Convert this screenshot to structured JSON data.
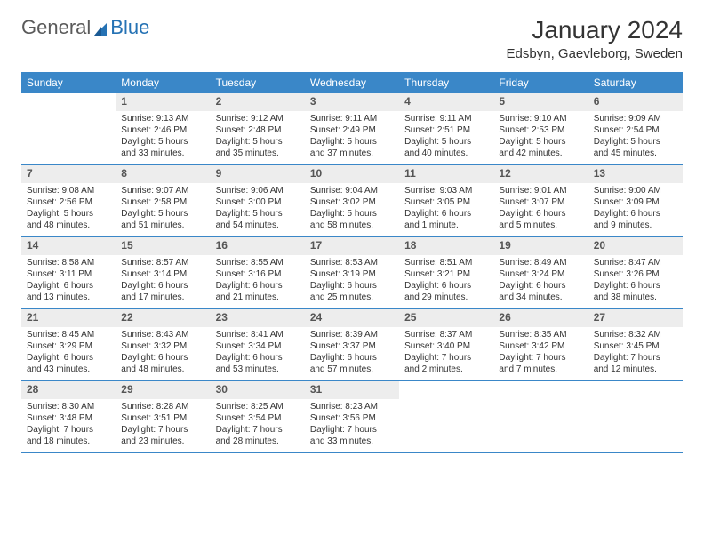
{
  "logo": {
    "text1": "General",
    "text2": "Blue"
  },
  "title": "January 2024",
  "location": "Edsbyn, Gaevleborg, Sweden",
  "colors": {
    "header_bg": "#3a87c8",
    "header_text": "#ffffff",
    "daynum_bg": "#ededed",
    "row_border": "#3a87c8",
    "text": "#333333"
  },
  "daysOfWeek": [
    "Sunday",
    "Monday",
    "Tuesday",
    "Wednesday",
    "Thursday",
    "Friday",
    "Saturday"
  ],
  "weeks": [
    [
      {
        "n": "",
        "sr": "",
        "ss": "",
        "dl": ""
      },
      {
        "n": "1",
        "sr": "Sunrise: 9:13 AM",
        "ss": "Sunset: 2:46 PM",
        "dl": "Daylight: 5 hours and 33 minutes."
      },
      {
        "n": "2",
        "sr": "Sunrise: 9:12 AM",
        "ss": "Sunset: 2:48 PM",
        "dl": "Daylight: 5 hours and 35 minutes."
      },
      {
        "n": "3",
        "sr": "Sunrise: 9:11 AM",
        "ss": "Sunset: 2:49 PM",
        "dl": "Daylight: 5 hours and 37 minutes."
      },
      {
        "n": "4",
        "sr": "Sunrise: 9:11 AM",
        "ss": "Sunset: 2:51 PM",
        "dl": "Daylight: 5 hours and 40 minutes."
      },
      {
        "n": "5",
        "sr": "Sunrise: 9:10 AM",
        "ss": "Sunset: 2:53 PM",
        "dl": "Daylight: 5 hours and 42 minutes."
      },
      {
        "n": "6",
        "sr": "Sunrise: 9:09 AM",
        "ss": "Sunset: 2:54 PM",
        "dl": "Daylight: 5 hours and 45 minutes."
      }
    ],
    [
      {
        "n": "7",
        "sr": "Sunrise: 9:08 AM",
        "ss": "Sunset: 2:56 PM",
        "dl": "Daylight: 5 hours and 48 minutes."
      },
      {
        "n": "8",
        "sr": "Sunrise: 9:07 AM",
        "ss": "Sunset: 2:58 PM",
        "dl": "Daylight: 5 hours and 51 minutes."
      },
      {
        "n": "9",
        "sr": "Sunrise: 9:06 AM",
        "ss": "Sunset: 3:00 PM",
        "dl": "Daylight: 5 hours and 54 minutes."
      },
      {
        "n": "10",
        "sr": "Sunrise: 9:04 AM",
        "ss": "Sunset: 3:02 PM",
        "dl": "Daylight: 5 hours and 58 minutes."
      },
      {
        "n": "11",
        "sr": "Sunrise: 9:03 AM",
        "ss": "Sunset: 3:05 PM",
        "dl": "Daylight: 6 hours and 1 minute."
      },
      {
        "n": "12",
        "sr": "Sunrise: 9:01 AM",
        "ss": "Sunset: 3:07 PM",
        "dl": "Daylight: 6 hours and 5 minutes."
      },
      {
        "n": "13",
        "sr": "Sunrise: 9:00 AM",
        "ss": "Sunset: 3:09 PM",
        "dl": "Daylight: 6 hours and 9 minutes."
      }
    ],
    [
      {
        "n": "14",
        "sr": "Sunrise: 8:58 AM",
        "ss": "Sunset: 3:11 PM",
        "dl": "Daylight: 6 hours and 13 minutes."
      },
      {
        "n": "15",
        "sr": "Sunrise: 8:57 AM",
        "ss": "Sunset: 3:14 PM",
        "dl": "Daylight: 6 hours and 17 minutes."
      },
      {
        "n": "16",
        "sr": "Sunrise: 8:55 AM",
        "ss": "Sunset: 3:16 PM",
        "dl": "Daylight: 6 hours and 21 minutes."
      },
      {
        "n": "17",
        "sr": "Sunrise: 8:53 AM",
        "ss": "Sunset: 3:19 PM",
        "dl": "Daylight: 6 hours and 25 minutes."
      },
      {
        "n": "18",
        "sr": "Sunrise: 8:51 AM",
        "ss": "Sunset: 3:21 PM",
        "dl": "Daylight: 6 hours and 29 minutes."
      },
      {
        "n": "19",
        "sr": "Sunrise: 8:49 AM",
        "ss": "Sunset: 3:24 PM",
        "dl": "Daylight: 6 hours and 34 minutes."
      },
      {
        "n": "20",
        "sr": "Sunrise: 8:47 AM",
        "ss": "Sunset: 3:26 PM",
        "dl": "Daylight: 6 hours and 38 minutes."
      }
    ],
    [
      {
        "n": "21",
        "sr": "Sunrise: 8:45 AM",
        "ss": "Sunset: 3:29 PM",
        "dl": "Daylight: 6 hours and 43 minutes."
      },
      {
        "n": "22",
        "sr": "Sunrise: 8:43 AM",
        "ss": "Sunset: 3:32 PM",
        "dl": "Daylight: 6 hours and 48 minutes."
      },
      {
        "n": "23",
        "sr": "Sunrise: 8:41 AM",
        "ss": "Sunset: 3:34 PM",
        "dl": "Daylight: 6 hours and 53 minutes."
      },
      {
        "n": "24",
        "sr": "Sunrise: 8:39 AM",
        "ss": "Sunset: 3:37 PM",
        "dl": "Daylight: 6 hours and 57 minutes."
      },
      {
        "n": "25",
        "sr": "Sunrise: 8:37 AM",
        "ss": "Sunset: 3:40 PM",
        "dl": "Daylight: 7 hours and 2 minutes."
      },
      {
        "n": "26",
        "sr": "Sunrise: 8:35 AM",
        "ss": "Sunset: 3:42 PM",
        "dl": "Daylight: 7 hours and 7 minutes."
      },
      {
        "n": "27",
        "sr": "Sunrise: 8:32 AM",
        "ss": "Sunset: 3:45 PM",
        "dl": "Daylight: 7 hours and 12 minutes."
      }
    ],
    [
      {
        "n": "28",
        "sr": "Sunrise: 8:30 AM",
        "ss": "Sunset: 3:48 PM",
        "dl": "Daylight: 7 hours and 18 minutes."
      },
      {
        "n": "29",
        "sr": "Sunrise: 8:28 AM",
        "ss": "Sunset: 3:51 PM",
        "dl": "Daylight: 7 hours and 23 minutes."
      },
      {
        "n": "30",
        "sr": "Sunrise: 8:25 AM",
        "ss": "Sunset: 3:54 PM",
        "dl": "Daylight: 7 hours and 28 minutes."
      },
      {
        "n": "31",
        "sr": "Sunrise: 8:23 AM",
        "ss": "Sunset: 3:56 PM",
        "dl": "Daylight: 7 hours and 33 minutes."
      },
      {
        "n": "",
        "sr": "",
        "ss": "",
        "dl": ""
      },
      {
        "n": "",
        "sr": "",
        "ss": "",
        "dl": ""
      },
      {
        "n": "",
        "sr": "",
        "ss": "",
        "dl": ""
      }
    ]
  ]
}
